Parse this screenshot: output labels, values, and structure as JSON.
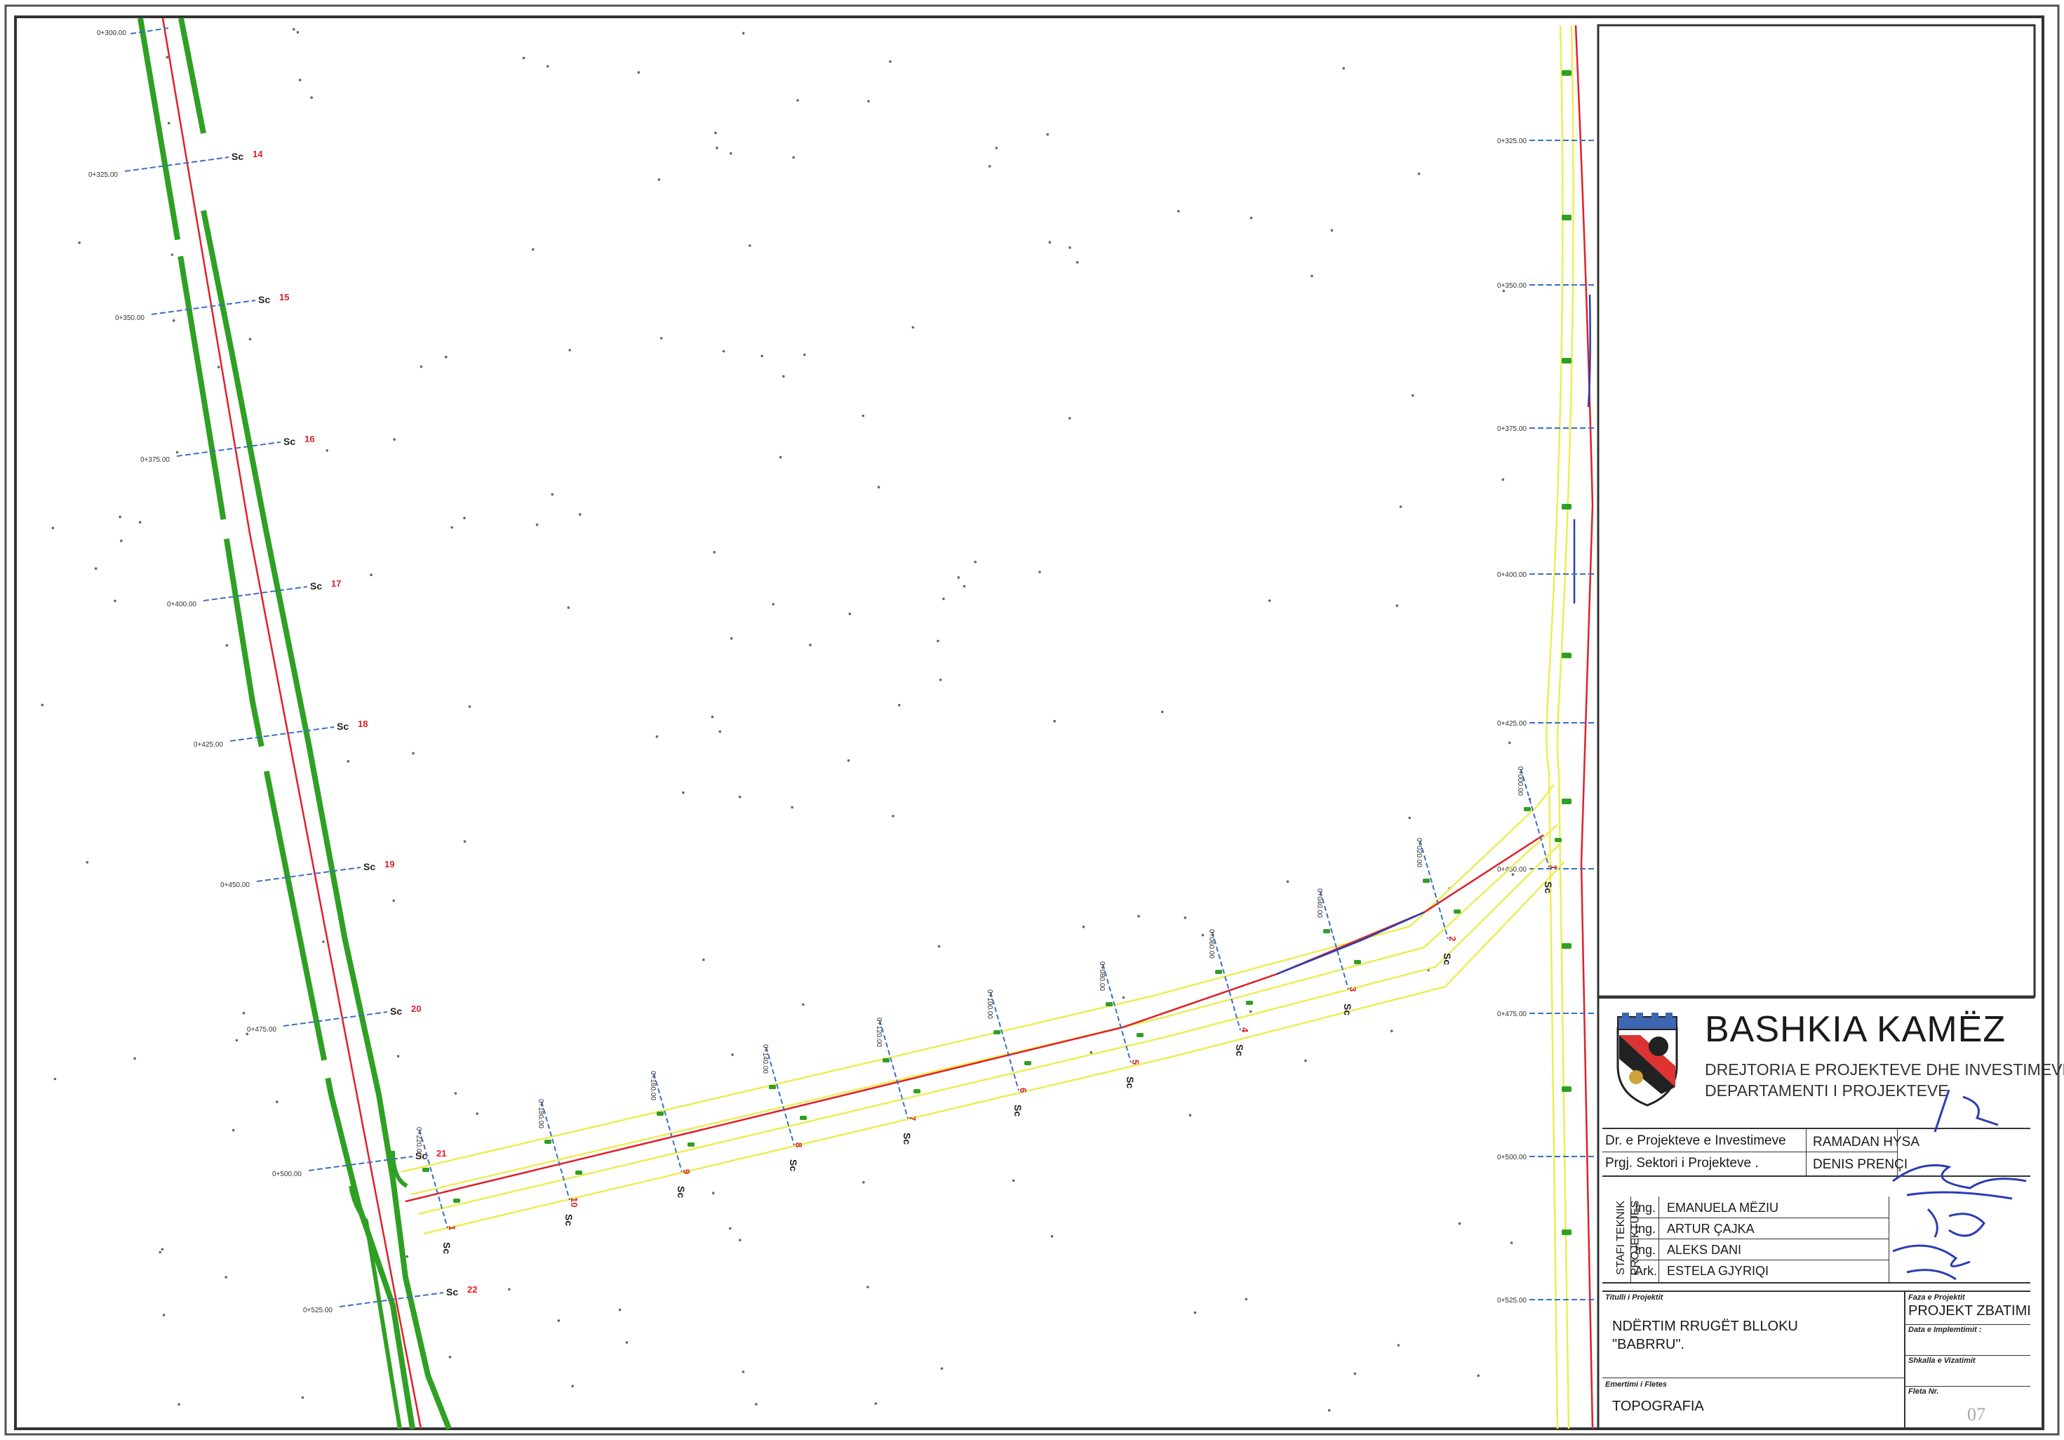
{
  "titleblock": {
    "org_name": "BASHKIA KAMËZ",
    "dept_line1": "DREJTORIA E PROJEKTEVE DHE INVESTIMEVE",
    "dept_line2": "DEPARTAMENTI I PROJEKTEVE",
    "emblem_band_text": "BASHKIA KAMEZ",
    "roles": [
      {
        "role": "Dr. e Projekteve e Investimeve",
        "name": "RAMADAN HYSA"
      },
      {
        "role": "Prgj. Sektori i Projekteve .",
        "name": "DENIS PRENÇI"
      }
    ],
    "staff_side_label_1": "STAFI TEKNIK",
    "staff_side_label_2": "PROJEKTUES",
    "staff": [
      {
        "title": "Ing.",
        "name": "EMANUELA MËZIU"
      },
      {
        "title": "Ing.",
        "name": "ARTUR ÇAJKA"
      },
      {
        "title": "Ing.",
        "name": "ALEKS DANI"
      },
      {
        "title": "Ark.",
        "name": "ESTELA GJYRIQI"
      }
    ],
    "project_title_label": "Titulli i Projektit",
    "project_title_line1": "NDËRTIM RRUGËT BLLOKU",
    "project_title_line2": "\"BABRRU\".",
    "phase_label": "Faza e Projektit",
    "phase_value": "PROJEKT ZBATIMI",
    "date_label": "Data e Implemtimit :",
    "scale_label": "Shkalla e Vizatimit",
    "sheet_name_label": "Emertimi i Fletes",
    "sheet_name_value": "TOPOGRAFIA",
    "sheet_no_label": "Fleta Nr.",
    "sheet_no_value": "07"
  },
  "drawing": {
    "colors": {
      "axis": "#e0202a",
      "axis_blue": "#2a3fb0",
      "edge": "#2fa023",
      "edge_yellow": "#eded55",
      "section": "#3a6fc4",
      "label": "#333333"
    },
    "left_road": {
      "sections": [
        {
          "number": "14",
          "marker": "Sc",
          "chainage": "0+325.00"
        },
        {
          "number": "15",
          "marker": "Sc",
          "chainage": "0+350.00"
        },
        {
          "number": "16",
          "marker": "Sc",
          "chainage": "0+375.00"
        },
        {
          "number": "17",
          "marker": "Sc",
          "chainage": "0+400.00"
        },
        {
          "number": "18",
          "marker": "Sc",
          "chainage": "0+425.00"
        },
        {
          "number": "19",
          "marker": "Sc",
          "chainage": "0+450.00"
        },
        {
          "number": "20",
          "marker": "Sc",
          "chainage": "0+475.00"
        },
        {
          "number": "21",
          "marker": "Sc",
          "chainage": "0+500.00"
        },
        {
          "number": "22",
          "marker": "Sc",
          "chainage": "0+525.00"
        }
      ],
      "top_chainage": "0+300.00"
    },
    "right_road": {
      "chainages": [
        "0+325.00",
        "0+350.00",
        "0+375.00",
        "0+400.00",
        "0+425.00",
        "0+450.00",
        "0+475.00",
        "0+500.00",
        "0+525.00"
      ]
    },
    "connector": {
      "sections": [
        {
          "number": "1",
          "marker": "Sc",
          "chainage": "0+220.00"
        },
        {
          "number": "10",
          "marker": "Sc",
          "chainage": "0+180.00"
        },
        {
          "number": "9",
          "marker": "Sc",
          "chainage": "0+160.00"
        },
        {
          "number": "8",
          "marker": "Sc",
          "chainage": "0+140.00"
        },
        {
          "number": "7",
          "marker": "Sc",
          "chainage": "0+120.00"
        },
        {
          "number": "6",
          "marker": "Sc",
          "chainage": "0+100.00"
        },
        {
          "number": "5",
          "marker": "Sc",
          "chainage": "0+080.00"
        },
        {
          "number": "4",
          "marker": "Sc",
          "chainage": "0+060.00"
        },
        {
          "number": "3",
          "marker": "Sc",
          "chainage": "0+040.00"
        },
        {
          "number": "2",
          "marker": "Sc",
          "chainage": "0+020.00"
        },
        {
          "number": "1",
          "marker": "Sc",
          "chainage": "0+000.00"
        }
      ]
    }
  }
}
